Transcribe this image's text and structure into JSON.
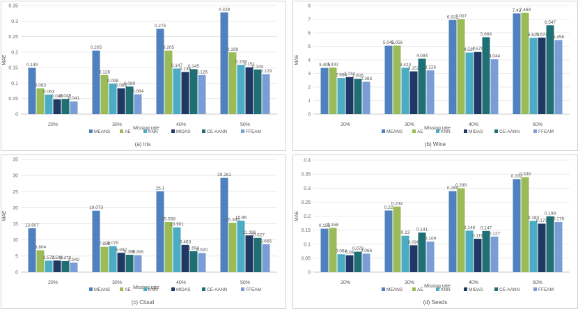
{
  "colors": [
    "#4e81bd",
    "#9bbb59",
    "#4bacc6",
    "#1f3864",
    "#1f6f74",
    "#7b9dd6"
  ],
  "series_names": [
    "MEANS",
    "AE",
    "KNN",
    "MIDAS",
    "CE-AANN",
    "FFEAM"
  ],
  "chart_data": [
    {
      "type": "bar",
      "caption": "(a)  Iris",
      "title": "",
      "ylabel": "MAE",
      "xlabel": "Missing rate",
      "categories": [
        "20%",
        "30%",
        "40%",
        "50%"
      ],
      "ylim": [
        0,
        0.35
      ],
      "yticks": [
        "0",
        "0.05",
        "0.1",
        "0.15",
        "0.2",
        "0.25",
        "0.3",
        "0.35"
      ],
      "series": [
        {
          "name": "MEANS",
          "values": [
            0.149,
            0.205,
            0.275,
            0.328
          ],
          "labels": [
            "0.149",
            "0.205",
            "0.275",
            "0.328"
          ]
        },
        {
          "name": "AE",
          "values": [
            0.083,
            0.126,
            0.205,
            0.199
          ],
          "labels": [
            "0.083",
            "0.126",
            "0.205",
            "0.199"
          ]
        },
        {
          "name": "KNN",
          "values": [
            0.063,
            0.098,
            0.147,
            0.159
          ],
          "labels": [
            "0.063",
            "0.098",
            "0.147",
            "0.159"
          ]
        },
        {
          "name": "MIDAS",
          "values": [
            0.048,
            0.083,
            0.136,
            0.151
          ],
          "labels": [
            "0.048",
            "0.083",
            "0.136",
            "0.151"
          ]
        },
        {
          "name": "CE-AANN",
          "values": [
            0.049,
            0.089,
            0.145,
            0.144
          ],
          "labels": [
            "0.049",
            "0.089",
            "0.145",
            "0.144"
          ]
        },
        {
          "name": "FFEAM",
          "values": [
            0.041,
            0.064,
            0.126,
            0.129
          ],
          "labels": [
            "0.041",
            "0.064",
            "0.126",
            "0.129"
          ]
        }
      ]
    },
    {
      "type": "bar",
      "caption": "(b)  Wine",
      "title": "",
      "ylabel": "MAE",
      "xlabel": "Missing rate",
      "categories": [
        "20%",
        "30%",
        "40%",
        "50%"
      ],
      "ylim": [
        0,
        8
      ],
      "yticks": [
        "0",
        "1",
        "2",
        "3",
        "4",
        "5",
        "6",
        "7",
        "8"
      ],
      "series": [
        {
          "name": "MEANS",
          "values": [
            3.405,
            5.045,
            6.931,
            7.42
          ],
          "labels": [
            "3.405",
            "5.045",
            "6.931",
            "7.42"
          ]
        },
        {
          "name": "AE",
          "values": [
            3.432,
            5.056,
            7.007,
            7.469
          ],
          "labels": [
            "3.432",
            "5.056",
            "7.007",
            "7.469"
          ]
        },
        {
          "name": "KNN",
          "values": [
            2.664,
            3.423,
            4.537,
            5.623
          ],
          "labels": [
            "2.664",
            "3.423",
            "4.537",
            "5.623"
          ]
        },
        {
          "name": "MIDAS",
          "values": [
            2.732,
            3.152,
            4.579,
            5.637
          ],
          "labels": [
            "2.732",
            "3.152",
            "4.579",
            "5.637"
          ]
        },
        {
          "name": "CE-AANN",
          "values": [
            2.605,
            4.084,
            5.669,
            6.547
          ],
          "labels": [
            "2.605",
            "4.084",
            "5.669",
            "6.547"
          ]
        },
        {
          "name": "FFEAM",
          "values": [
            2.383,
            3.226,
            4.044,
            5.456
          ],
          "labels": [
            "2.383",
            "3.226",
            "4.044",
            "5.456"
          ]
        }
      ]
    },
    {
      "type": "bar",
      "caption": "(c)  Cloud",
      "title": "",
      "ylabel": "MAE",
      "xlabel": "Missing rate",
      "categories": [
        "20%",
        "30%",
        "40%",
        "50%"
      ],
      "ylim": [
        0,
        35
      ],
      "yticks": [
        "0",
        "5",
        "10",
        "15",
        "20",
        "25",
        "30",
        "35"
      ],
      "series": [
        {
          "name": "MEANS",
          "values": [
            13.607,
            19.073,
            25.1,
            29.261
          ],
          "labels": [
            "13.607",
            "19.073",
            "25.1",
            "29.261"
          ]
        },
        {
          "name": "AE",
          "values": [
            6.804,
            7.858,
            15.558,
            15.345
          ],
          "labels": [
            "6.804",
            "7.858",
            "15.558",
            "15.345"
          ]
        },
        {
          "name": "KNN",
          "values": [
            3.573,
            8.079,
            13.901,
            15.96
          ],
          "labels": [
            "3.573",
            "8.079",
            "13.901",
            "15.96"
          ]
        },
        {
          "name": "MIDAS",
          "values": [
            3.596,
            5.992,
            8.463,
            11.396
          ],
          "labels": [
            "3.596",
            "5.992",
            "8.463",
            "11.396"
          ]
        },
        {
          "name": "CE-AANN",
          "values": [
            3.473,
            5.388,
            6.504,
            10.627
          ],
          "labels": [
            "3.473",
            "5.388",
            "6.504",
            "10.627"
          ]
        },
        {
          "name": "FFEAM",
          "values": [
            2.942,
            5.255,
            5.92,
            8.665
          ],
          "labels": [
            "2.942",
            "5.255",
            "5.920",
            "8.665"
          ]
        }
      ]
    },
    {
      "type": "bar",
      "caption": "(d)  Seeds",
      "title": "",
      "ylabel": "MAE",
      "xlabel": "Missing rate",
      "categories": [
        "20%",
        "30%",
        "40%",
        "50%"
      ],
      "ylim": [
        0,
        0.4
      ],
      "yticks": [
        "0",
        "0.05",
        "0.1",
        "0.15",
        "0.2",
        "0.25",
        "0.3",
        "0.35",
        "0.4"
      ],
      "series": [
        {
          "name": "MEANS",
          "values": [
            0.155,
            0.22,
            0.289,
            0.332
          ],
          "labels": [
            "0.155",
            "0.22",
            "0.289",
            "0.332"
          ]
        },
        {
          "name": "AE",
          "values": [
            0.158,
            0.234,
            0.299,
            0.339
          ],
          "labels": [
            "0.158",
            "0.234",
            "0.299",
            "0.339"
          ]
        },
        {
          "name": "KNN",
          "values": [
            0.064,
            0.13,
            0.148,
            0.183
          ],
          "labels": [
            "0.064",
            "0.13",
            "0.148",
            "0.183"
          ]
        },
        {
          "name": "MIDAS",
          "values": [
            0.06,
            0.096,
            0.119,
            0.173
          ],
          "labels": [
            "0.06",
            "0.096",
            "0.119",
            "0.173"
          ]
        },
        {
          "name": "CE-AANN",
          "values": [
            0.073,
            0.141,
            0.147,
            0.199
          ],
          "labels": [
            "0.073",
            "0.141",
            "0.147",
            "0.199"
          ]
        },
        {
          "name": "FFEAM",
          "values": [
            0.066,
            0.109,
            0.127,
            0.179
          ],
          "labels": [
            "0.066",
            "0.109",
            "0.127",
            "0.179"
          ]
        }
      ]
    }
  ]
}
